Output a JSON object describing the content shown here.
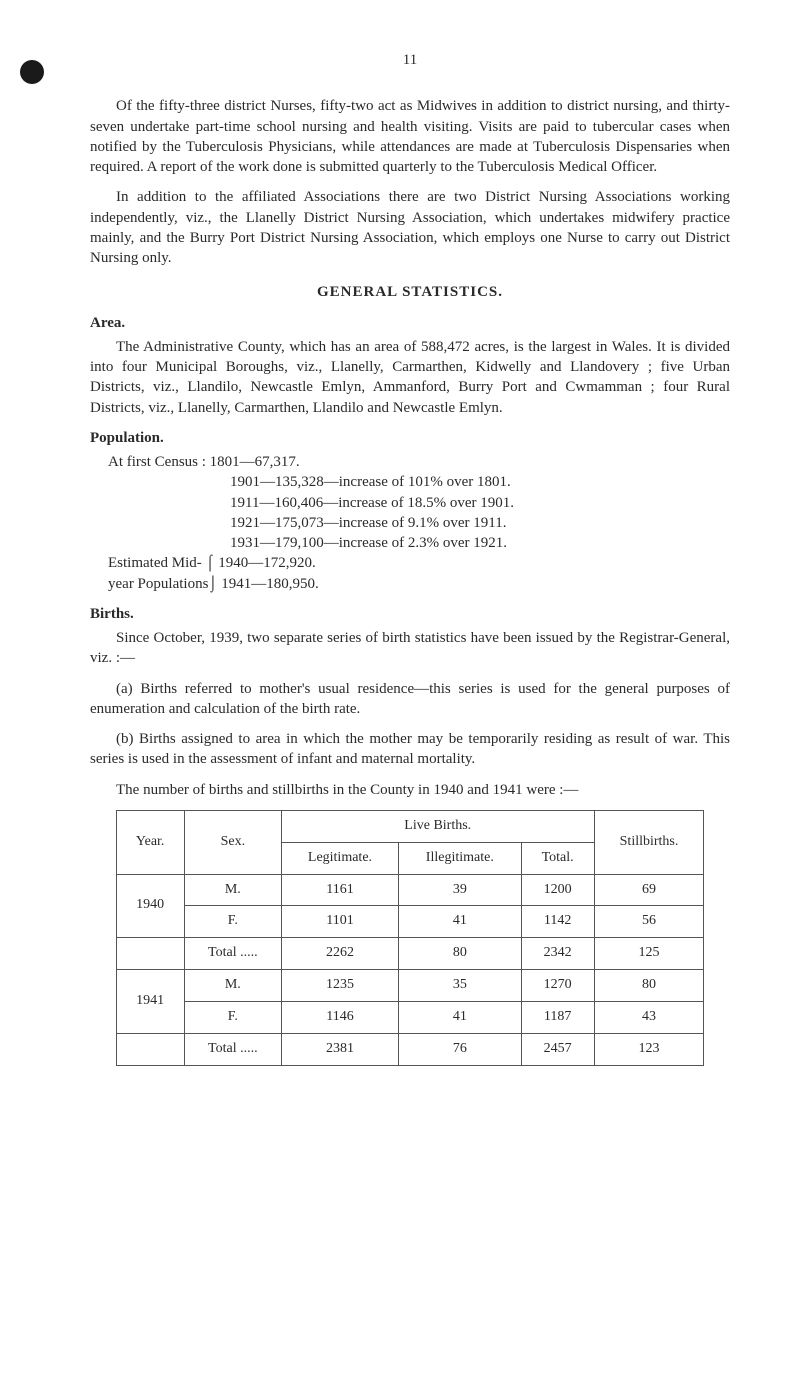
{
  "page_number": "11",
  "para1": "Of the fifty-three district Nurses, fifty-two act as Midwives in addition to district nursing, and thirty-seven undertake part-time school nursing and health visiting. Visits are paid to tubercular cases when notified by the Tuberculosis Physicians, while attendances are made at Tuberculosis Dispensaries when required. A report of the work done is submitted quarterly to the Tuberculosis Medical Officer.",
  "para2": "In addition to the affiliated Associations there are two District Nursing Associations working independently, viz., the Llanelly District Nursing Association, which undertakes midwifery practice mainly, and the Burry Port District Nursing Association, which employs one Nurse to carry out District Nursing only.",
  "general_title": "GENERAL STATISTICS.",
  "area_label": "Area.",
  "area_para": "The Administrative County, which has an area of 588,472 acres, is the largest in Wales. It is divided into four Municipal Boroughs, viz., Llanelly, Carmarthen, Kidwelly and Llandovery ; five Urban Districts, viz., Llandilo, Newcastle Emlyn, Ammanford, Burry Port and Cwmamman ; four Rural Districts, viz., Llanelly, Carmarthen, Llandilo and Newcastle Emlyn.",
  "population_label": "Population.",
  "census_first": "At first Census : 1801—67,317.",
  "census_lines": [
    "1901—135,328—increase of 101% over 1801.",
    "1911—160,406—increase of 18.5% over 1901.",
    "1921—175,073—increase of 9.1% over 1911.",
    "1931—179,100—increase of 2.3% over 1921."
  ],
  "est_line1": "Estimated Mid-  ⌠ 1940—172,920.",
  "est_line2": "year Populations⌡ 1941—180,950.",
  "births_label": "Births.",
  "births_p1": "Since October, 1939, two separate series of birth statistics have been issued by the Registrar-General, viz. :—",
  "births_p2": "(a) Births referred to mother's usual residence—this series is used for the general purposes of enumeration and calculation of the birth rate.",
  "births_p3": "(b) Births assigned to area in which the mother may be temporarily residing as result of war. This series is used in the assessment of infant and maternal mortality.",
  "births_p4": "The number of births and stillbirths in the County in 1940 and 1941 were :—",
  "table": {
    "headers": {
      "year": "Year.",
      "sex": "Sex.",
      "live": "Live Births.",
      "leg": "Legitimate.",
      "illeg": "Illegitimate.",
      "total": "Total.",
      "still": "Stillbirths."
    },
    "rows": [
      {
        "year": "1940",
        "sex1": "M.",
        "sex2": "F.",
        "leg1": "1161",
        "leg2": "1101",
        "ill1": "39",
        "ill2": "41",
        "tot1": "1200",
        "tot2": "1142",
        "st1": "69",
        "st2": "56",
        "total_label": "Total .....",
        "t_leg": "2262",
        "t_ill": "80",
        "t_tot": "2342",
        "t_st": "125"
      },
      {
        "year": "1941",
        "sex1": "M.",
        "sex2": "F.",
        "leg1": "1235",
        "leg2": "1146",
        "ill1": "35",
        "ill2": "41",
        "tot1": "1270",
        "tot2": "1187",
        "st1": "80",
        "st2": "43",
        "total_label": "Total .....",
        "t_leg": "2381",
        "t_ill": "76",
        "t_tot": "2457",
        "t_st": "123"
      }
    ]
  }
}
